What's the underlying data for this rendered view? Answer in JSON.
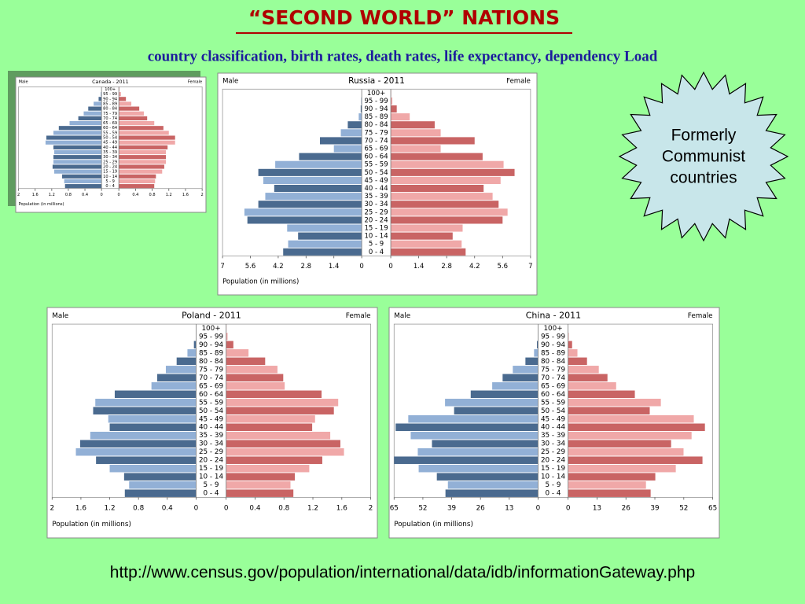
{
  "slide_title": "“SECOND WORLD” NATIONS",
  "subtitle": "country classification, birth rates, death rates, life expectancy, dependency Load",
  "callout": [
    "Formerly",
    "Communist",
    "countries"
  ],
  "source_url": "http://www.census.gov/population/international/data/idb/informationGateway.php",
  "chart_data": [
    {
      "type": "pyramid",
      "title": "Canada - 2011",
      "xlabel": "Population (in millions)",
      "categories": [
        "100+",
        "95 - 99",
        "90 - 94",
        "85 - 89",
        "80 - 84",
        "75 - 79",
        "70 - 74",
        "65 - 69",
        "60 - 64",
        "55 - 59",
        "50 - 54",
        "45 - 49",
        "40 - 44",
        "35 - 39",
        "30 - 34",
        "25 - 29",
        "20 - 24",
        "15 - 19",
        "10 - 14",
        "5 - 9",
        "0 - 4"
      ],
      "series": [
        {
          "name": "Male",
          "color": "#4a6a8f",
          "alt_color": "#92b0d6",
          "values": [
            0,
            0.02,
            0.07,
            0.19,
            0.32,
            0.43,
            0.56,
            0.77,
            1.03,
            1.16,
            1.33,
            1.35,
            1.16,
            1.14,
            1.16,
            1.16,
            1.18,
            1.14,
            0.95,
            0.9,
            0.88
          ]
        },
        {
          "name": "Female",
          "color": "#c96464",
          "alt_color": "#f0a8a8",
          "values": [
            0.01,
            0.05,
            0.17,
            0.3,
            0.49,
            0.6,
            0.68,
            0.85,
            1.07,
            1.2,
            1.35,
            1.35,
            1.17,
            1.13,
            1.13,
            1.13,
            1.09,
            1.04,
            0.89,
            0.87,
            0.85
          ]
        }
      ],
      "xlim": [
        0,
        2
      ],
      "xticks": [
        0,
        0.4,
        0.8,
        1.2,
        1.6,
        2
      ]
    },
    {
      "type": "pyramid",
      "title": "Russia - 2011",
      "xlabel": "Population (in millions)",
      "categories": [
        "100+",
        "95 - 99",
        "90 - 94",
        "85 - 89",
        "80 - 84",
        "75 - 79",
        "70 - 74",
        "65 - 69",
        "60 - 64",
        "55 - 59",
        "50 - 54",
        "45 - 49",
        "40 - 44",
        "35 - 39",
        "30 - 34",
        "25 - 29",
        "20 - 24",
        "15 - 19",
        "10 - 14",
        "5 - 9",
        "0 - 4"
      ],
      "series": [
        {
          "name": "Male",
          "color": "#4a6a8f",
          "alt_color": "#92b0d6",
          "values": [
            0,
            0.03,
            0.05,
            0.15,
            0.7,
            1.05,
            2.1,
            1.4,
            3.15,
            4.35,
            5.2,
            4.95,
            4.4,
            4.85,
            5.2,
            5.9,
            5.75,
            3.75,
            3.2,
            3.7,
            3.95
          ]
        },
        {
          "name": "Female",
          "color": "#c96464",
          "alt_color": "#f0a8a8",
          "values": [
            0.02,
            0.08,
            0.3,
            0.95,
            2.2,
            2.5,
            4.2,
            2.5,
            4.6,
            5.65,
            6.2,
            5.5,
            4.65,
            5.1,
            5.4,
            5.85,
            5.6,
            3.6,
            3.1,
            3.55,
            3.75
          ]
        }
      ],
      "xlim": [
        0,
        7
      ],
      "xticks": [
        0,
        1.4,
        2.8,
        4.2,
        5.6,
        7
      ]
    },
    {
      "type": "pyramid",
      "title": "Poland - 2011",
      "xlabel": "Population (in millions)",
      "categories": [
        "100+",
        "95 - 99",
        "90 - 94",
        "85 - 89",
        "80 - 84",
        "75 - 79",
        "70 - 74",
        "65 - 69",
        "60 - 64",
        "55 - 59",
        "50 - 54",
        "45 - 49",
        "40 - 44",
        "35 - 39",
        "30 - 34",
        "25 - 29",
        "20 - 24",
        "15 - 19",
        "10 - 14",
        "5 - 9",
        "0 - 4"
      ],
      "series": [
        {
          "name": "Male",
          "color": "#4a6a8f",
          "alt_color": "#92b0d6",
          "values": [
            0,
            0.003,
            0.03,
            0.12,
            0.27,
            0.42,
            0.54,
            0.62,
            1.13,
            1.4,
            1.43,
            1.22,
            1.2,
            1.47,
            1.61,
            1.67,
            1.39,
            1.2,
            1.0,
            0.93,
            0.99
          ]
        },
        {
          "name": "Female",
          "color": "#c96464",
          "alt_color": "#f0a8a8",
          "values": [
            0.005,
            0.02,
            0.1,
            0.31,
            0.54,
            0.71,
            0.79,
            0.81,
            1.32,
            1.55,
            1.49,
            1.23,
            1.19,
            1.44,
            1.58,
            1.63,
            1.33,
            1.15,
            0.95,
            0.89,
            0.93
          ]
        }
      ],
      "xlim": [
        0,
        2
      ],
      "xticks": [
        0,
        0.4,
        0.8,
        1.2,
        1.6,
        2
      ]
    },
    {
      "type": "pyramid",
      "title": "China - 2011",
      "xlabel": "Population (in millions)",
      "categories": [
        "100+",
        "95 - 99",
        "90 - 94",
        "85 - 89",
        "80 - 84",
        "75 - 79",
        "70 - 74",
        "65 - 69",
        "60 - 64",
        "55 - 59",
        "50 - 54",
        "45 - 49",
        "40 - 44",
        "35 - 39",
        "30 - 34",
        "25 - 29",
        "20 - 24",
        "15 - 19",
        "10 - 14",
        "5 - 9",
        "0 - 4"
      ],
      "series": [
        {
          "name": "Male",
          "color": "#4a6a8f",
          "alt_color": "#92b0d6",
          "values": [
            0,
            0.1,
            0.5,
            1.8,
            5.7,
            11.4,
            16,
            20.7,
            30.4,
            42,
            37.9,
            58.6,
            64.3,
            57.5,
            47.9,
            54.3,
            65,
            53.9,
            45.7,
            40.7,
            41.8
          ]
        },
        {
          "name": "Female",
          "color": "#c96464",
          "alt_color": "#f0a8a8",
          "values": [
            0.05,
            0.3,
            1.8,
            4.2,
            8.5,
            13.8,
            17.7,
            21.6,
            30,
            41.7,
            36.7,
            56.5,
            61.5,
            55.5,
            46.3,
            51.9,
            60.4,
            48.4,
            39.2,
            35,
            37.1
          ]
        }
      ],
      "xlim": [
        0,
        65
      ],
      "xticks": [
        0,
        13,
        26,
        39,
        52,
        65
      ]
    }
  ]
}
